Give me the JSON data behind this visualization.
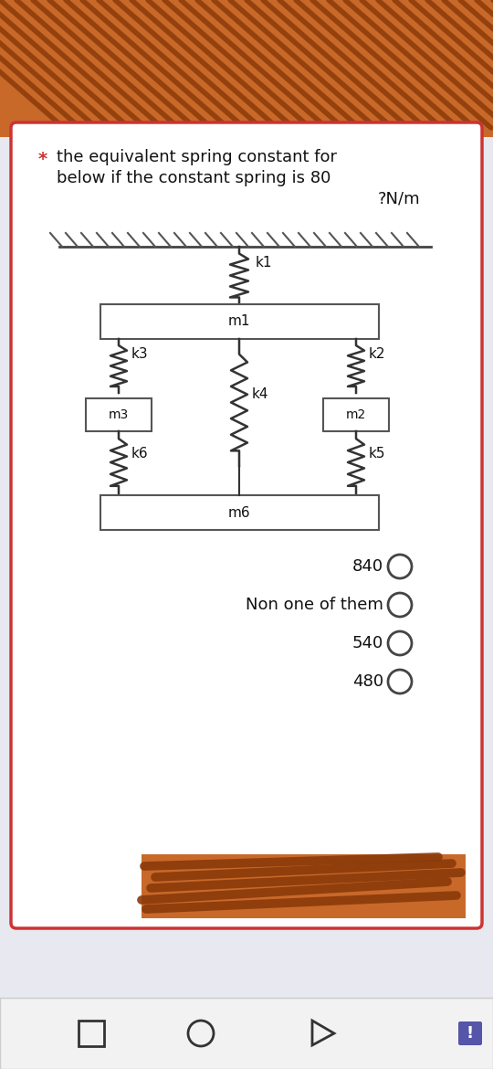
{
  "title_line1": "the equivalent spring constant for",
  "title_line2": "below if the constant spring is 80",
  "title_line3": "?N/m",
  "star": "*",
  "bg_color": "#e8e8f0",
  "card_bg": "#ffffff",
  "border_color": "#cc3333",
  "choices": [
    "840",
    "Non one of them",
    "540",
    "480"
  ],
  "box_color": "#ffffff",
  "box_border": "#555555",
  "spring_color": "#333333",
  "hatch_color": "#555555",
  "text_color": "#111111",
  "brown_color": "#c8692a",
  "dark_brown": "#8B3A0A"
}
